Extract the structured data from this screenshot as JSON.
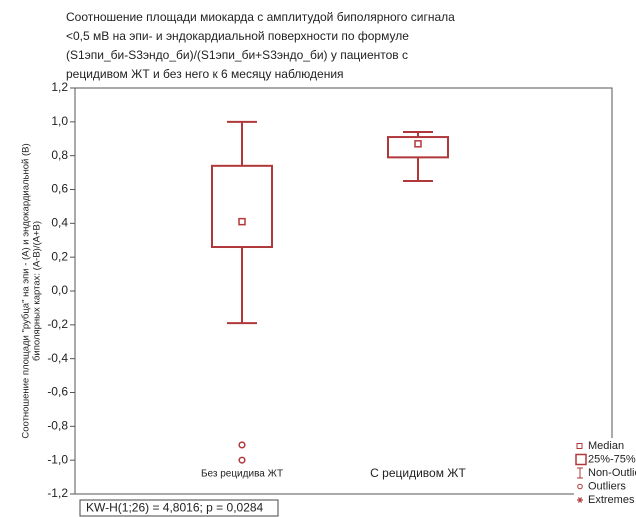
{
  "chart_data": {
    "type": "box",
    "title": [
      "Соотношение площади миокарда с амплитудой биполярного сигнала",
      "<0,5 мВ на эпи- и эндокардиальной поверхности по формуле",
      "(S1эпи_би-S3эндо_би)/(S1эпи_би+S3эндо_би) у пациентов с",
      "рецидивом ЖТ и без него к 6 месяцу наблюдения"
    ],
    "y_label": [
      "Соотношение площади \"рубца\" на эпи - (A) и эндокардиальной (B)",
      "биполярных картах: (A-B)/(A+B)"
    ],
    "categories": [
      "Без рецидива ЖТ",
      "С рецидивом ЖТ"
    ],
    "color": "#b0383a",
    "boxes": [
      {
        "whisker_low": -0.19,
        "q1": 0.26,
        "median": 0.41,
        "q3": 0.74,
        "whisker_high": 1.0,
        "outliers": [
          -0.91,
          -1.0
        ]
      },
      {
        "whisker_low": 0.65,
        "q1": 0.79,
        "median": 0.87,
        "q3": 0.91,
        "whisker_high": 0.94,
        "outliers": []
      }
    ],
    "ylim": [
      -1.2,
      1.2
    ],
    "yticks": [
      {
        "value": -1.2,
        "label": "-1,2"
      },
      {
        "value": -1.0,
        "label": "-1,0"
      },
      {
        "value": -0.8,
        "label": "-0,8"
      },
      {
        "value": -0.6,
        "label": "-0,6"
      },
      {
        "value": -0.4,
        "label": "-0,4"
      },
      {
        "value": -0.2,
        "label": "-0,2"
      },
      {
        "value": 0,
        "label": "0,0"
      },
      {
        "value": 0.2,
        "label": "0,2"
      },
      {
        "value": 0.4,
        "label": "0,4"
      },
      {
        "value": 0.6,
        "label": "0,6"
      },
      {
        "value": 0.8,
        "label": "0,8"
      },
      {
        "value": 1.0,
        "label": "1,0"
      },
      {
        "value": 1.2,
        "label": "1,2"
      }
    ],
    "legend": [
      "Median",
      "25%-75%",
      "Non-Outlier Range",
      "Outliers",
      "Extremes"
    ],
    "annotation": "KW-H(1;26) = 4,8016; p = 0,0284"
  }
}
